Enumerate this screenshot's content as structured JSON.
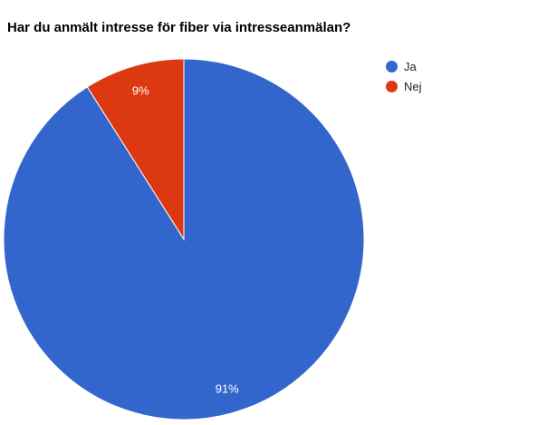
{
  "chart_data": {
    "type": "pie",
    "title": "Har du anmält intresse för fiber via intresseanmälan?",
    "slices": [
      {
        "label": "Ja",
        "value": 91,
        "display": "91%",
        "color": "#3366cc"
      },
      {
        "label": "Nej",
        "value": 9,
        "display": "9%",
        "color": "#dc3912"
      }
    ],
    "legend_position": "right"
  }
}
